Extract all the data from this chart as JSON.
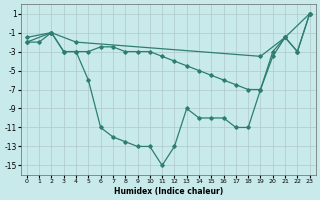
{
  "xlabel": "Humidex (Indice chaleur)",
  "background_color": "#c8eaea",
  "grid_color": "#b0c8c8",
  "line_color": "#2e7d72",
  "xlim": [
    -0.5,
    23.5
  ],
  "ylim": [
    -16,
    2
  ],
  "xticks": [
    0,
    1,
    2,
    3,
    4,
    5,
    6,
    7,
    8,
    9,
    10,
    11,
    12,
    13,
    14,
    15,
    16,
    17,
    18,
    19,
    20,
    21,
    22,
    23
  ],
  "yticks": [
    1,
    -1,
    -3,
    -5,
    -7,
    -9,
    -11,
    -13,
    -15
  ],
  "line1_x": [
    0,
    2,
    4,
    19,
    21,
    23
  ],
  "line1_y": [
    -1.5,
    -1,
    -2,
    -3.5,
    -1.5,
    1
  ],
  "line2_x": [
    0,
    2,
    3,
    4,
    5,
    6,
    7,
    8,
    9,
    10,
    11,
    12,
    13,
    14,
    15,
    16,
    17,
    18,
    19,
    20,
    21,
    22,
    23
  ],
  "line2_y": [
    -2,
    -1,
    -3,
    -3,
    -3,
    -2.5,
    -2.5,
    -3,
    -3,
    -3,
    -3.5,
    -4,
    -4.5,
    -5,
    -5.5,
    -6,
    -6.5,
    -7,
    -7,
    -3.5,
    -1.5,
    -3,
    1
  ],
  "line3_x": [
    0,
    1,
    2,
    3,
    4,
    5,
    6,
    7,
    8,
    9,
    10,
    11,
    12,
    13,
    14,
    15,
    16,
    17,
    18,
    19,
    20,
    21,
    22,
    23
  ],
  "line3_y": [
    -2,
    -2,
    -1,
    -3,
    -3,
    -6,
    -11,
    -12,
    -12.5,
    -13,
    -13,
    -15,
    -13,
    -9,
    -10,
    -10,
    -10,
    -11,
    -11,
    -7,
    -3,
    -1.5,
    -3,
    1
  ]
}
